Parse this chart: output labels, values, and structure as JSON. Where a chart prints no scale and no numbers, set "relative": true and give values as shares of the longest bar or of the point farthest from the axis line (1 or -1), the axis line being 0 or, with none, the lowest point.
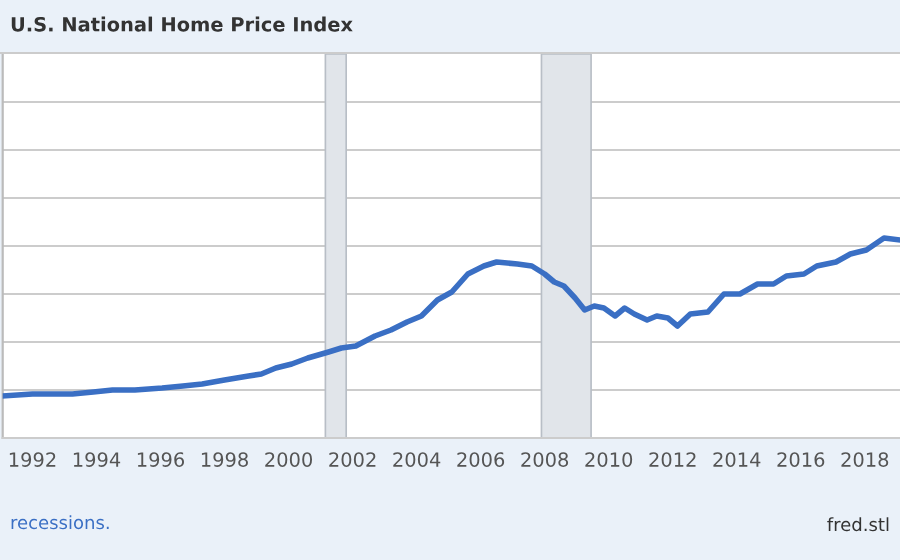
{
  "chart_data": {
    "type": "line",
    "title": "U.S. National Home Price Index",
    "relative": true,
    "grid": "y",
    "x": [
      1991.07,
      1992.0,
      1993.25,
      1993.9,
      1994.5,
      1995.2,
      1996.05,
      1996.7,
      1997.3,
      1998.0,
      1998.75,
      1999.15,
      1999.6,
      2000.1,
      2000.6,
      2001.25,
      2001.65,
      2002.1,
      2002.7,
      2003.2,
      2003.7,
      2004.15,
      2004.65,
      2005.1,
      2005.6,
      2006.1,
      2006.5,
      2007.15,
      2007.6,
      2008.0,
      2008.3,
      2008.6,
      2008.95,
      2009.25,
      2009.55,
      2009.85,
      2010.2,
      2010.5,
      2010.8,
      2011.2,
      2011.5,
      2011.85,
      2012.15,
      2012.55,
      2013.1,
      2013.6,
      2014.1,
      2014.65,
      2015.15,
      2015.55,
      2016.1,
      2016.5,
      2017.1,
      2017.55,
      2018.05,
      2018.6,
      2019.1
    ],
    "series": [
      {
        "color": "#3a6fc4",
        "values": [
          0.21,
          0.22,
          0.22,
          0.23,
          0.24,
          0.24,
          0.25,
          0.26,
          0.27,
          0.29,
          0.31,
          0.32,
          0.35,
          0.37,
          0.4,
          0.43,
          0.45,
          0.46,
          0.51,
          0.54,
          0.58,
          0.61,
          0.69,
          0.73,
          0.82,
          0.86,
          0.88,
          0.87,
          0.86,
          0.82,
          0.78,
          0.76,
          0.7,
          0.64,
          0.66,
          0.65,
          0.61,
          0.65,
          0.62,
          0.59,
          0.61,
          0.6,
          0.56,
          0.62,
          0.63,
          0.72,
          0.72,
          0.77,
          0.77,
          0.81,
          0.82,
          0.86,
          0.88,
          0.92,
          0.94,
          1.0,
          0.99
        ]
      }
    ],
    "xlim": [
      1991.07,
      2019.1
    ],
    "xticks": [
      1992,
      1994,
      1996,
      1998,
      2000,
      2002,
      2004,
      2006,
      2008,
      2010,
      2012,
      2014,
      2016,
      2018
    ],
    "bands": [
      {
        "axis": "x",
        "from": 2001.15,
        "to": 2001.8,
        "color": "#e1e5ea"
      },
      {
        "axis": "x",
        "from": 2007.9,
        "to": 2009.45,
        "color": "#e1e5ea"
      }
    ],
    "annotations": [
      "recessions.",
      "fred.stl"
    ]
  }
}
